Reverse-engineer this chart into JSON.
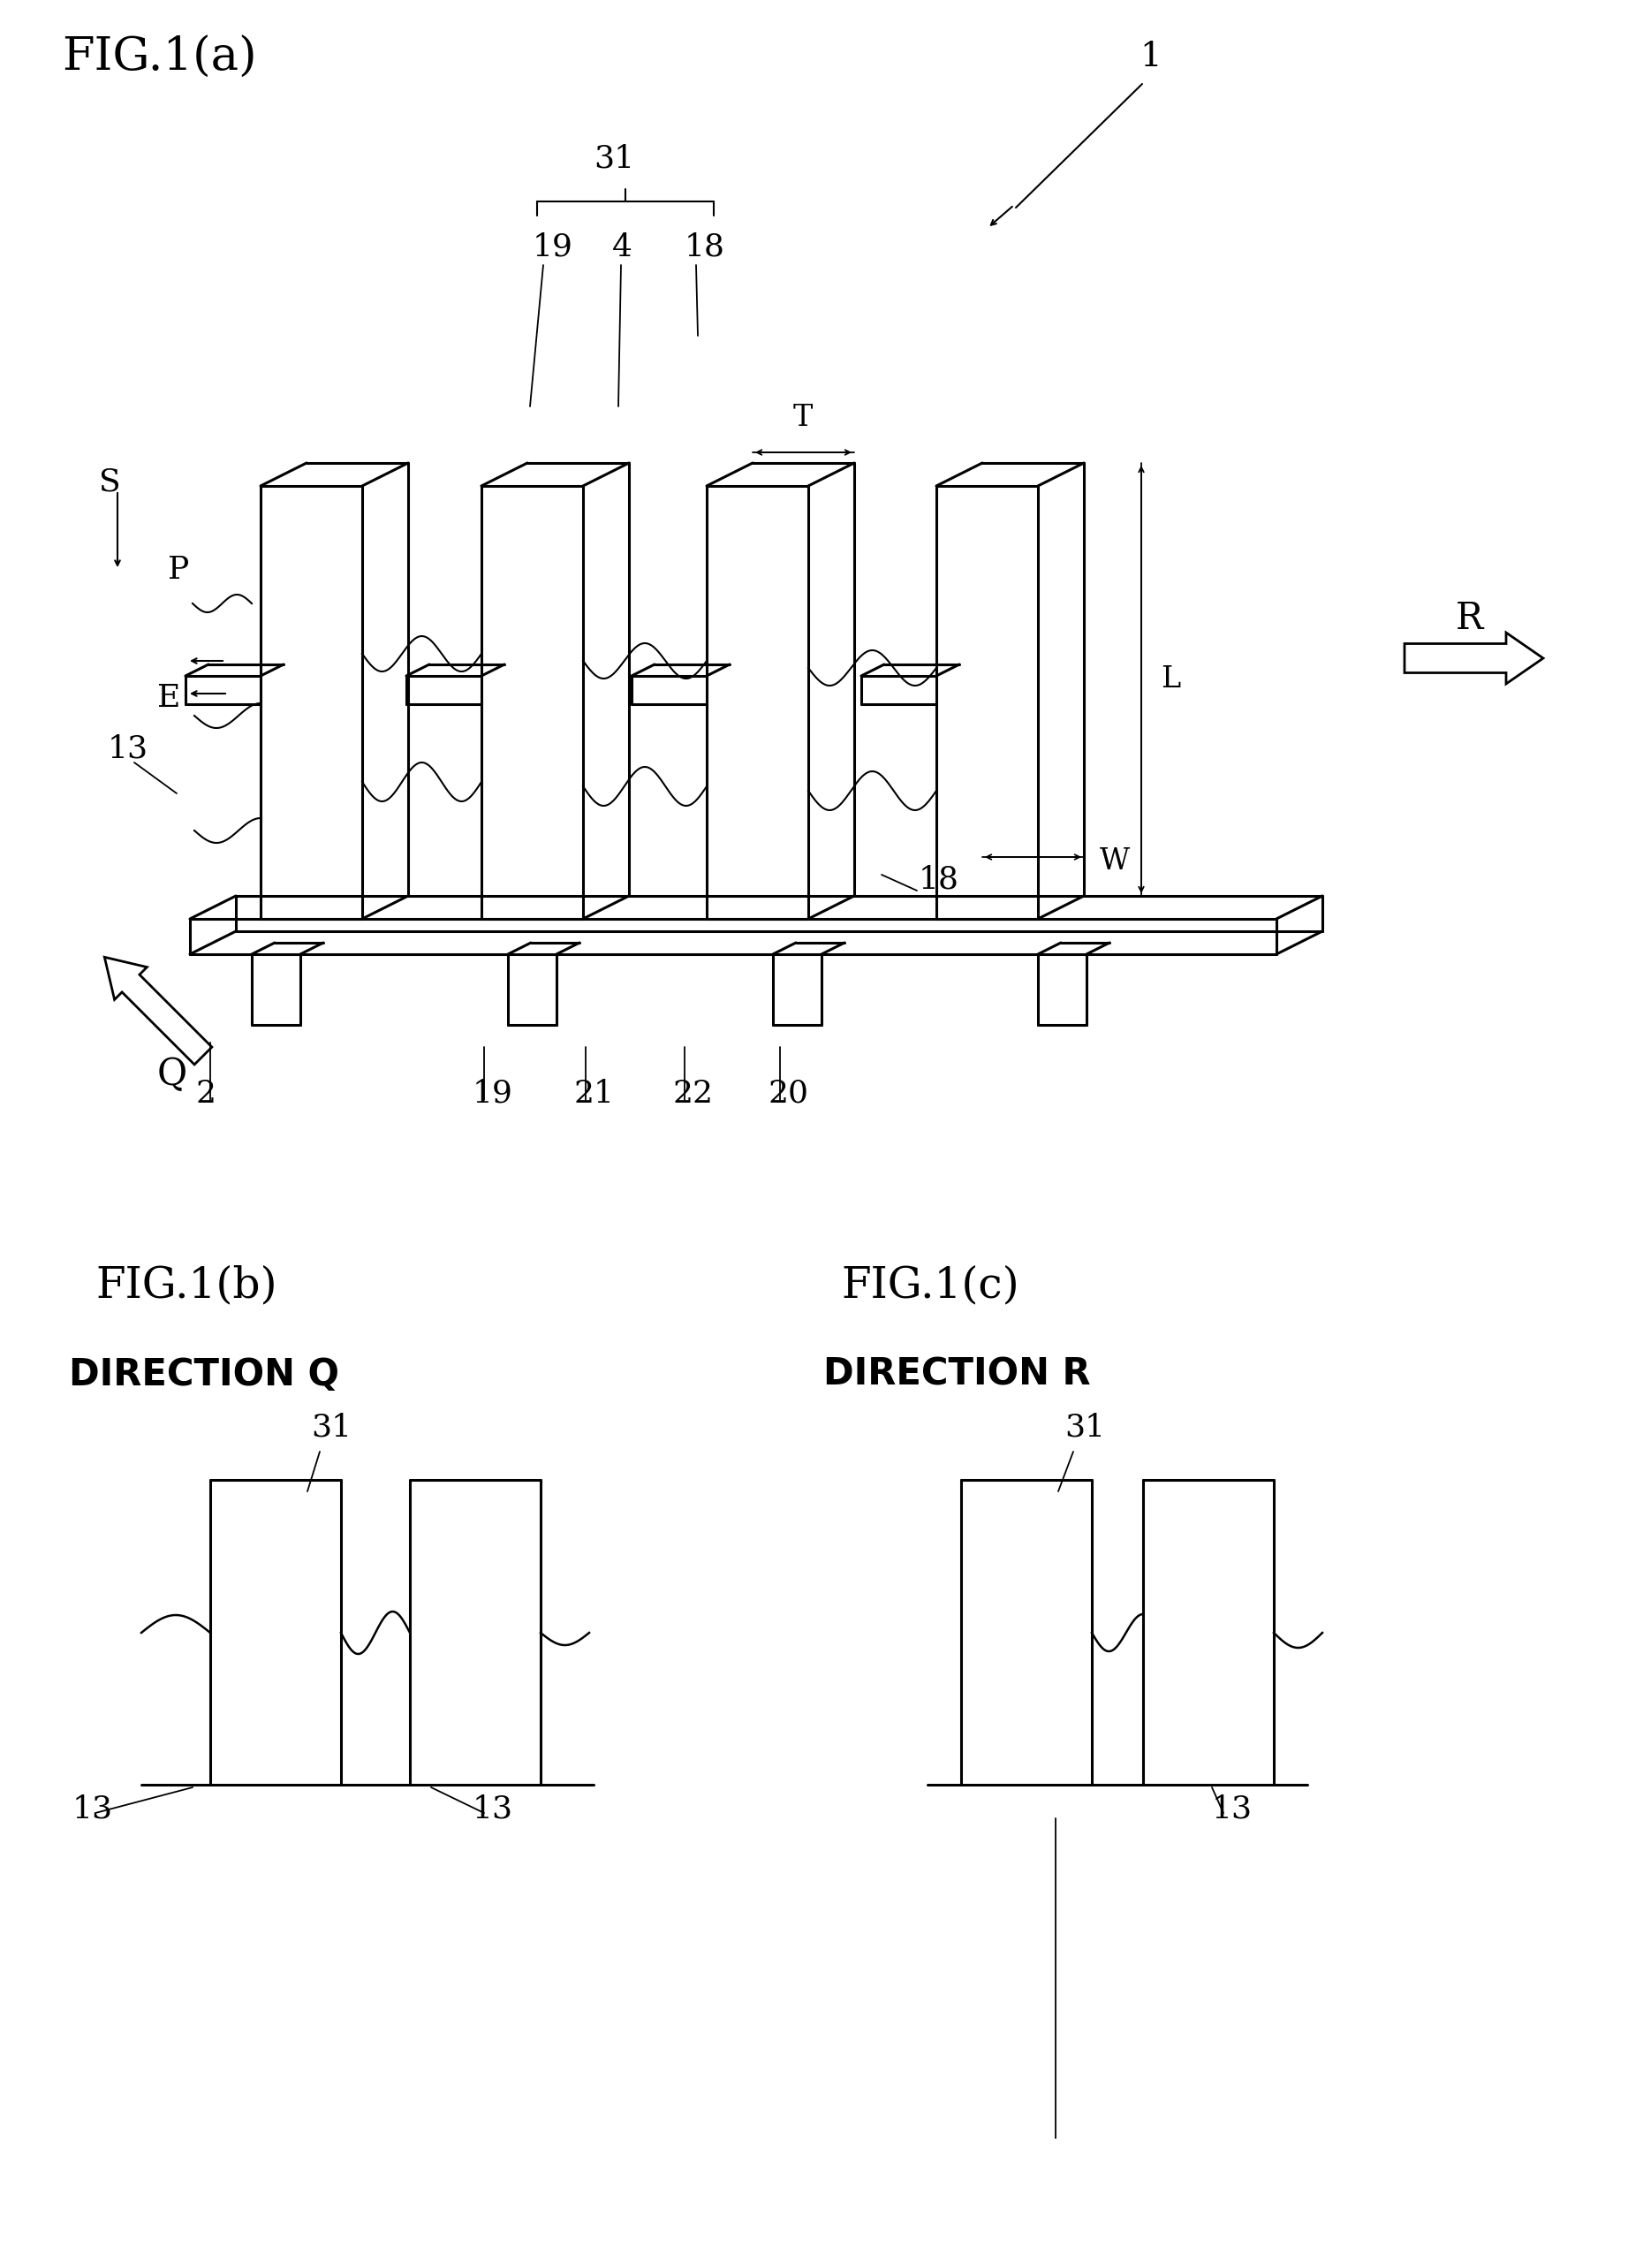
{
  "fig_a_title": "FIG.1(a)",
  "fig_b_title": "FIG.1(b)",
  "fig_c_title": "FIG.1(c)",
  "direction_q": "DIRECTION Q",
  "direction_r": "DIRECTION R",
  "bg_color": "#ffffff",
  "line_color": "#000000",
  "label_1": "1",
  "label_2": "2",
  "label_4": "4",
  "label_13": "13",
  "label_18": "18",
  "label_18b": "18",
  "label_19": "19",
  "label_19b": "19",
  "label_20": "20",
  "label_21": "21",
  "label_22": "22",
  "label_31": "31",
  "label_31b": "31",
  "label_31c": "31",
  "label_E": "E",
  "label_L": "L",
  "label_P": "P",
  "label_Q": "Q",
  "label_R": "R",
  "label_S": "S",
  "label_T": "T",
  "label_W": "W",
  "label_13b": "13",
  "label_13c": "13",
  "label_13d": "13"
}
